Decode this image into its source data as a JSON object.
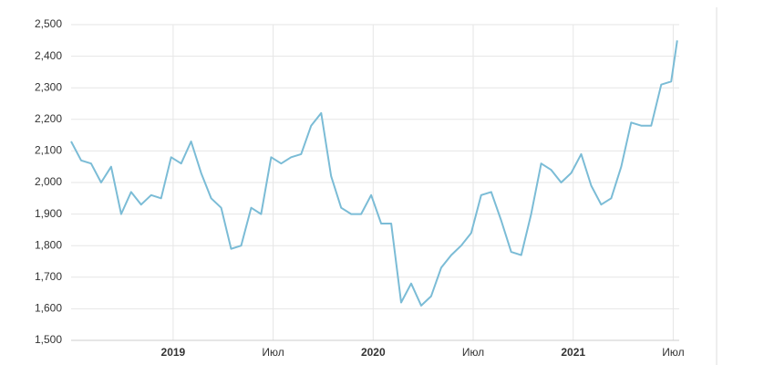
{
  "chart_data": {
    "type": "line",
    "x": [
      2018.49,
      2018.54,
      2018.59,
      2018.64,
      2018.69,
      2018.74,
      2018.79,
      2018.84,
      2018.89,
      2018.94,
      2018.99,
      2019.04,
      2019.09,
      2019.14,
      2019.19,
      2019.24,
      2019.29,
      2019.34,
      2019.39,
      2019.44,
      2019.49,
      2019.54,
      2019.59,
      2019.64,
      2019.69,
      2019.74,
      2019.79,
      2019.84,
      2019.89,
      2019.94,
      2019.99,
      2020.04,
      2020.09,
      2020.14,
      2020.19,
      2020.24,
      2020.29,
      2020.34,
      2020.39,
      2020.44,
      2020.49,
      2020.54,
      2020.59,
      2020.64,
      2020.69,
      2020.74,
      2020.79,
      2020.84,
      2020.89,
      2020.94,
      2020.99,
      2021.04,
      2021.09,
      2021.14,
      2021.19,
      2021.24,
      2021.29,
      2021.34,
      2021.39,
      2021.44,
      2021.49,
      2021.52
    ],
    "series": [
      {
        "color": "#7bbcd6",
        "values": [
          2130,
          2070,
          2060,
          2000,
          2050,
          1900,
          1970,
          1930,
          1960,
          1950,
          2080,
          2060,
          2130,
          2030,
          1950,
          1920,
          1790,
          1800,
          1920,
          1900,
          2080,
          2060,
          2080,
          2090,
          2180,
          2220,
          2020,
          1920,
          1900,
          1900,
          1960,
          1870,
          1870,
          1620,
          1680,
          1610,
          1640,
          1730,
          1770,
          1800,
          1840,
          1960,
          1970,
          1880,
          1780,
          1770,
          1900,
          2060,
          2040,
          2000,
          2030,
          2090,
          1990,
          1930,
          1950,
          2050,
          2190,
          2180,
          2180,
          2310,
          2320,
          2450
        ]
      }
    ],
    "xlim": [
      2018.49,
      2021.53
    ],
    "xticks": [
      {
        "value": 2019,
        "label": "2019"
      },
      {
        "value": 2019.5,
        "label": "Июл"
      },
      {
        "value": 2020,
        "label": "2020"
      },
      {
        "value": 2020.5,
        "label": "Июл"
      },
      {
        "value": 2021,
        "label": "2021"
      },
      {
        "value": 2021.5,
        "label": "Июл"
      }
    ],
    "ylim": [
      1500,
      2500
    ],
    "yticks": [
      {
        "value": 1500,
        "label": "1,500"
      },
      {
        "value": 1600,
        "label": "1,600"
      },
      {
        "value": 1700,
        "label": "1,700"
      },
      {
        "value": 1800,
        "label": "1,800"
      },
      {
        "value": 1900,
        "label": "1,900"
      },
      {
        "value": 2000,
        "label": "2,000"
      },
      {
        "value": 2100,
        "label": "2,100"
      },
      {
        "value": 2200,
        "label": "2,200"
      },
      {
        "value": 2300,
        "label": "2,300"
      },
      {
        "value": 2400,
        "label": "2,400"
      },
      {
        "value": 2500,
        "label": "2,500"
      }
    ],
    "grid": true
  }
}
